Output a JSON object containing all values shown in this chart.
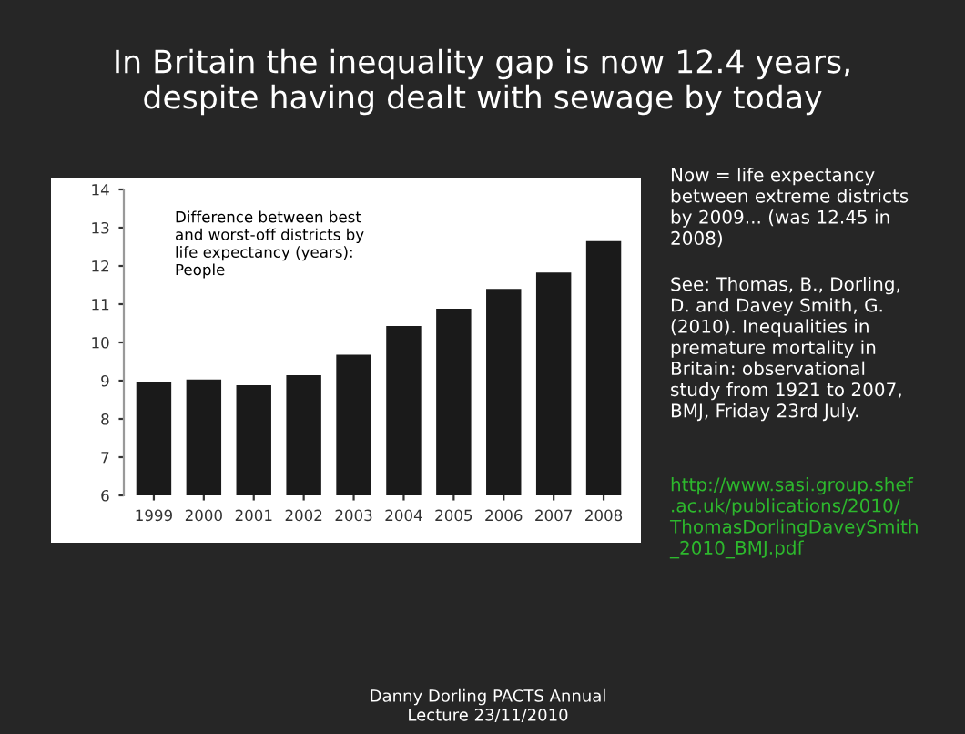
{
  "chart_data": {
    "type": "bar",
    "title": "In Britain the inequality gap is now 12.4 years,\ndespite having dealt with sewage by today",
    "categories": [
      "1999",
      "2000",
      "2001",
      "2002",
      "2003",
      "2004",
      "2005",
      "2006",
      "2007",
      "2008"
    ],
    "values": [
      8.96,
      9.03,
      8.88,
      9.14,
      9.68,
      10.43,
      10.88,
      11.4,
      11.83,
      12.65
    ],
    "color": "#1a1a1a",
    "ylim": [
      6,
      14
    ],
    "yticks": [
      6,
      7,
      8,
      9,
      10,
      11,
      12,
      13,
      14
    ],
    "grid": false,
    "legend": false,
    "annotations": [
      "Difference between best\nand worst-off districts by\nlife expectancy (years):\nPeople",
      "Now = life expectancy\nbetween extreme districts\nby 2009... (was 12.45 in\n2008)",
      "See: Thomas, B., Dorling,\nD. and Davey Smith, G.\n(2010). Inequalities in\npremature mortality in\nBritain: observational\nstudy from 1921 to 2007,\nBMJ, Friday 23rd July.",
      "http://www.sasi.group.shef\n.ac.uk/publications/2010/\nThomasDorlingDaveySmith\n_2010_BMJ.pdf",
      "Danny Dorling PACTS Annual\nLecture 23/11/2010"
    ]
  }
}
